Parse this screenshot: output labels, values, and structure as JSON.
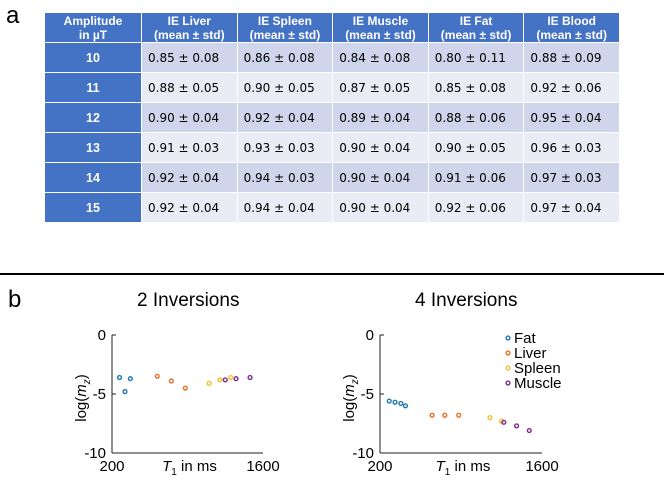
{
  "panel_labels": {
    "a": "a",
    "b": "b"
  },
  "table": {
    "headers": [
      {
        "line1": "Amplitude",
        "line2": "in µT"
      },
      {
        "line1": "IE Liver",
        "line2": "(mean ± std)"
      },
      {
        "line1": "IE Spleen",
        "line2": "(mean ± std)"
      },
      {
        "line1": "IE Muscle",
        "line2": "(mean ± std)"
      },
      {
        "line1": "IE Fat",
        "line2": "(mean ± std)"
      },
      {
        "line1": "IE Blood",
        "line2": "(mean ± std)"
      }
    ],
    "rows": [
      {
        "amplitude": "10",
        "values": [
          "0.85 ± 0.08",
          "0.86 ± 0.08",
          "0.84 ± 0.08",
          "0.80 ± 0.11",
          "0.88 ± 0.09"
        ]
      },
      {
        "amplitude": "11",
        "values": [
          "0.88 ± 0.05",
          "0.90 ± 0.05",
          "0.87 ± 0.05",
          "0.85 ± 0.08",
          "0.92 ± 0.06"
        ]
      },
      {
        "amplitude": "12",
        "values": [
          "0.90 ± 0.04",
          "0.92 ± 0.04",
          "0.89 ± 0.04",
          "0.88 ± 0.06",
          "0.95 ± 0.04"
        ]
      },
      {
        "amplitude": "13",
        "values": [
          "0.91 ± 0.03",
          "0.93 ± 0.03",
          "0.90 ± 0.04",
          "0.90 ± 0.05",
          "0.96 ± 0.03"
        ]
      },
      {
        "amplitude": "14",
        "values": [
          "0.92 ± 0.04",
          "0.94 ± 0.03",
          "0.90 ± 0.04",
          "0.91 ± 0.06",
          "0.97 ± 0.03"
        ]
      },
      {
        "amplitude": "15",
        "values": [
          "0.92 ± 0.04",
          "0.94 ± 0.04",
          "0.90 ± 0.04",
          "0.92 ± 0.06",
          "0.97 ± 0.04"
        ]
      }
    ]
  },
  "colors": {
    "header_bg": "#4472c4",
    "row_odd": "#cfd5ea",
    "row_even": "#e9ebf5",
    "Fat": "#1f77b4",
    "Liver": "#e8712a",
    "Spleen": "#f2c12e",
    "Muscle": "#7e2f8e"
  },
  "chart_data": [
    {
      "type": "scatter",
      "title": "2 Inversions",
      "xlabel_symbol": "T",
      "xlabel_sub": "1",
      "xlabel_rest": " in ms",
      "ylabel_prefix": "log(",
      "ylabel_var": "m",
      "ylabel_sub": "z",
      "ylabel_suffix": ")",
      "xlim": [
        200,
        1600
      ],
      "ylim": [
        -10,
        0
      ],
      "xticks": [
        "200",
        "1600"
      ],
      "yticks": [
        "0",
        "-5",
        "-10"
      ],
      "series": [
        {
          "name": "Fat",
          "x": [
            270,
            320,
            370
          ],
          "y": [
            -3.6,
            -4.8,
            -3.7
          ]
        },
        {
          "name": "Liver",
          "x": [
            620,
            750,
            880
          ],
          "y": [
            -3.5,
            -3.9,
            -4.5
          ]
        },
        {
          "name": "Spleen",
          "x": [
            1100,
            1200,
            1300
          ],
          "y": [
            -4.1,
            -3.8,
            -3.6
          ]
        },
        {
          "name": "Muscle",
          "x": [
            1250,
            1350,
            1480
          ],
          "y": [
            -3.8,
            -3.7,
            -3.6
          ]
        }
      ]
    },
    {
      "type": "scatter",
      "title": "4 Inversions",
      "xlabel_symbol": "T",
      "xlabel_sub": "1",
      "xlabel_rest": " in ms",
      "ylabel_prefix": "log(",
      "ylabel_var": "m",
      "ylabel_sub": "z",
      "ylabel_suffix": ")",
      "xlim": [
        200,
        1600
      ],
      "ylim": [
        -10,
        0
      ],
      "xticks": [
        "200",
        "1600"
      ],
      "yticks": [
        "0",
        "-5",
        "-10"
      ],
      "legend": [
        "Fat",
        "Liver",
        "Spleen",
        "Muscle"
      ],
      "legend_position": "top-right",
      "series": [
        {
          "name": "Fat",
          "x": [
            280,
            330,
            380,
            420
          ],
          "y": [
            -5.6,
            -5.7,
            -5.8,
            -6.0
          ]
        },
        {
          "name": "Liver",
          "x": [
            650,
            760,
            880
          ],
          "y": [
            -6.8,
            -6.8,
            -6.8
          ]
        },
        {
          "name": "Spleen",
          "x": [
            1150,
            1250
          ],
          "y": [
            -7.0,
            -7.3
          ]
        },
        {
          "name": "Muscle",
          "x": [
            1270,
            1380,
            1490
          ],
          "y": [
            -7.4,
            -7.7,
            -8.1
          ]
        }
      ]
    }
  ]
}
